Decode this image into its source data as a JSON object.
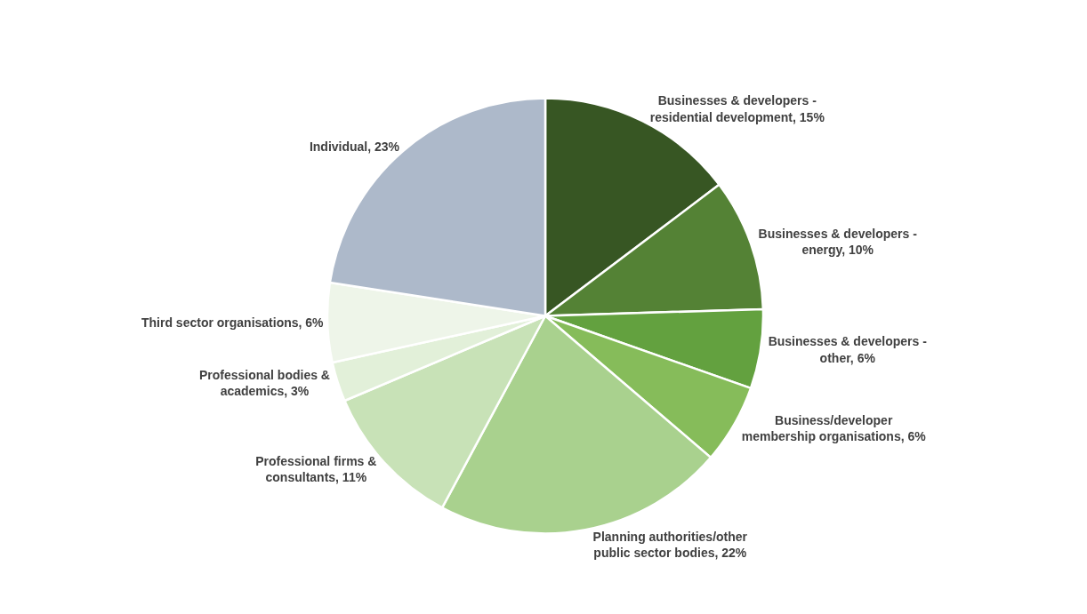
{
  "chart_data": {
    "type": "pie",
    "categories": [
      "Businesses & developers - residential development",
      "Businesses & developers - energy",
      "Businesses & developers - other",
      "Business/developer membership organisations",
      "Planning authorities/other public sector bodies",
      "Professional firms & consultants",
      "Professional bodies & academics",
      "Third sector organisations",
      "Individual"
    ],
    "values": [
      15,
      10,
      6,
      6,
      22,
      11,
      3,
      6,
      23
    ],
    "value_labels": [
      "15%",
      "10%",
      "6%",
      "6%",
      "22%",
      "11%",
      "3%",
      "6%",
      "23%"
    ],
    "colors": [
      "#375623",
      "#548235",
      "#63a13f",
      "#86bc5a",
      "#a9d18e",
      "#c8e2b7",
      "#e2f0d9",
      "#eef5e9",
      "#adb9ca"
    ],
    "legend": false
  }
}
